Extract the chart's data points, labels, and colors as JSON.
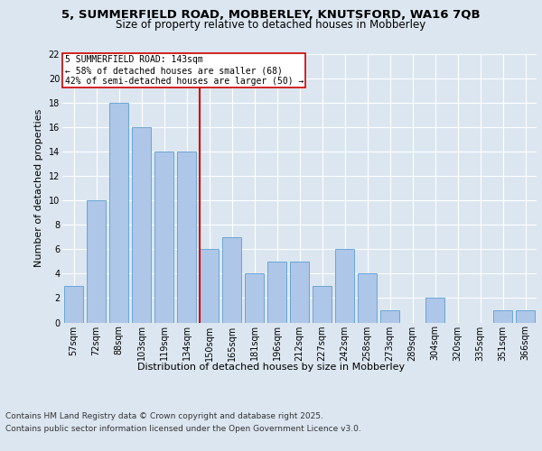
{
  "title1": "5, SUMMERFIELD ROAD, MOBBERLEY, KNUTSFORD, WA16 7QB",
  "title2": "Size of property relative to detached houses in Mobberley",
  "xlabel": "Distribution of detached houses by size in Mobberley",
  "ylabel": "Number of detached properties",
  "categories": [
    "57sqm",
    "72sqm",
    "88sqm",
    "103sqm",
    "119sqm",
    "134sqm",
    "150sqm",
    "165sqm",
    "181sqm",
    "196sqm",
    "212sqm",
    "227sqm",
    "242sqm",
    "258sqm",
    "273sqm",
    "289sqm",
    "304sqm",
    "320sqm",
    "335sqm",
    "351sqm",
    "366sqm"
  ],
  "values": [
    3,
    10,
    18,
    16,
    14,
    14,
    6,
    7,
    4,
    5,
    5,
    3,
    6,
    4,
    1,
    0,
    2,
    0,
    0,
    1,
    1
  ],
  "bar_color": "#aec6e8",
  "bar_edge_color": "#5a9fd4",
  "vline_x": 5.575,
  "property_line_label": "5 SUMMERFIELD ROAD: 143sqm",
  "annotation_line1": "← 58% of detached houses are smaller (68)",
  "annotation_line2": "42% of semi-detached houses are larger (50) →",
  "vline_color": "#cc0000",
  "annotation_box_color": "#ffffff",
  "annotation_box_edge": "#cc0000",
  "ylim": [
    0,
    22
  ],
  "yticks": [
    0,
    2,
    4,
    6,
    8,
    10,
    12,
    14,
    16,
    18,
    20,
    22
  ],
  "background_color": "#dce6f0",
  "plot_bg_color": "#dce6f0",
  "footer_line1": "Contains HM Land Registry data © Crown copyright and database right 2025.",
  "footer_line2": "Contains public sector information licensed under the Open Government Licence v3.0.",
  "title_fontsize": 9.5,
  "subtitle_fontsize": 8.5,
  "axis_label_fontsize": 8,
  "tick_fontsize": 7,
  "annotation_fontsize": 7,
  "footer_fontsize": 6.5
}
